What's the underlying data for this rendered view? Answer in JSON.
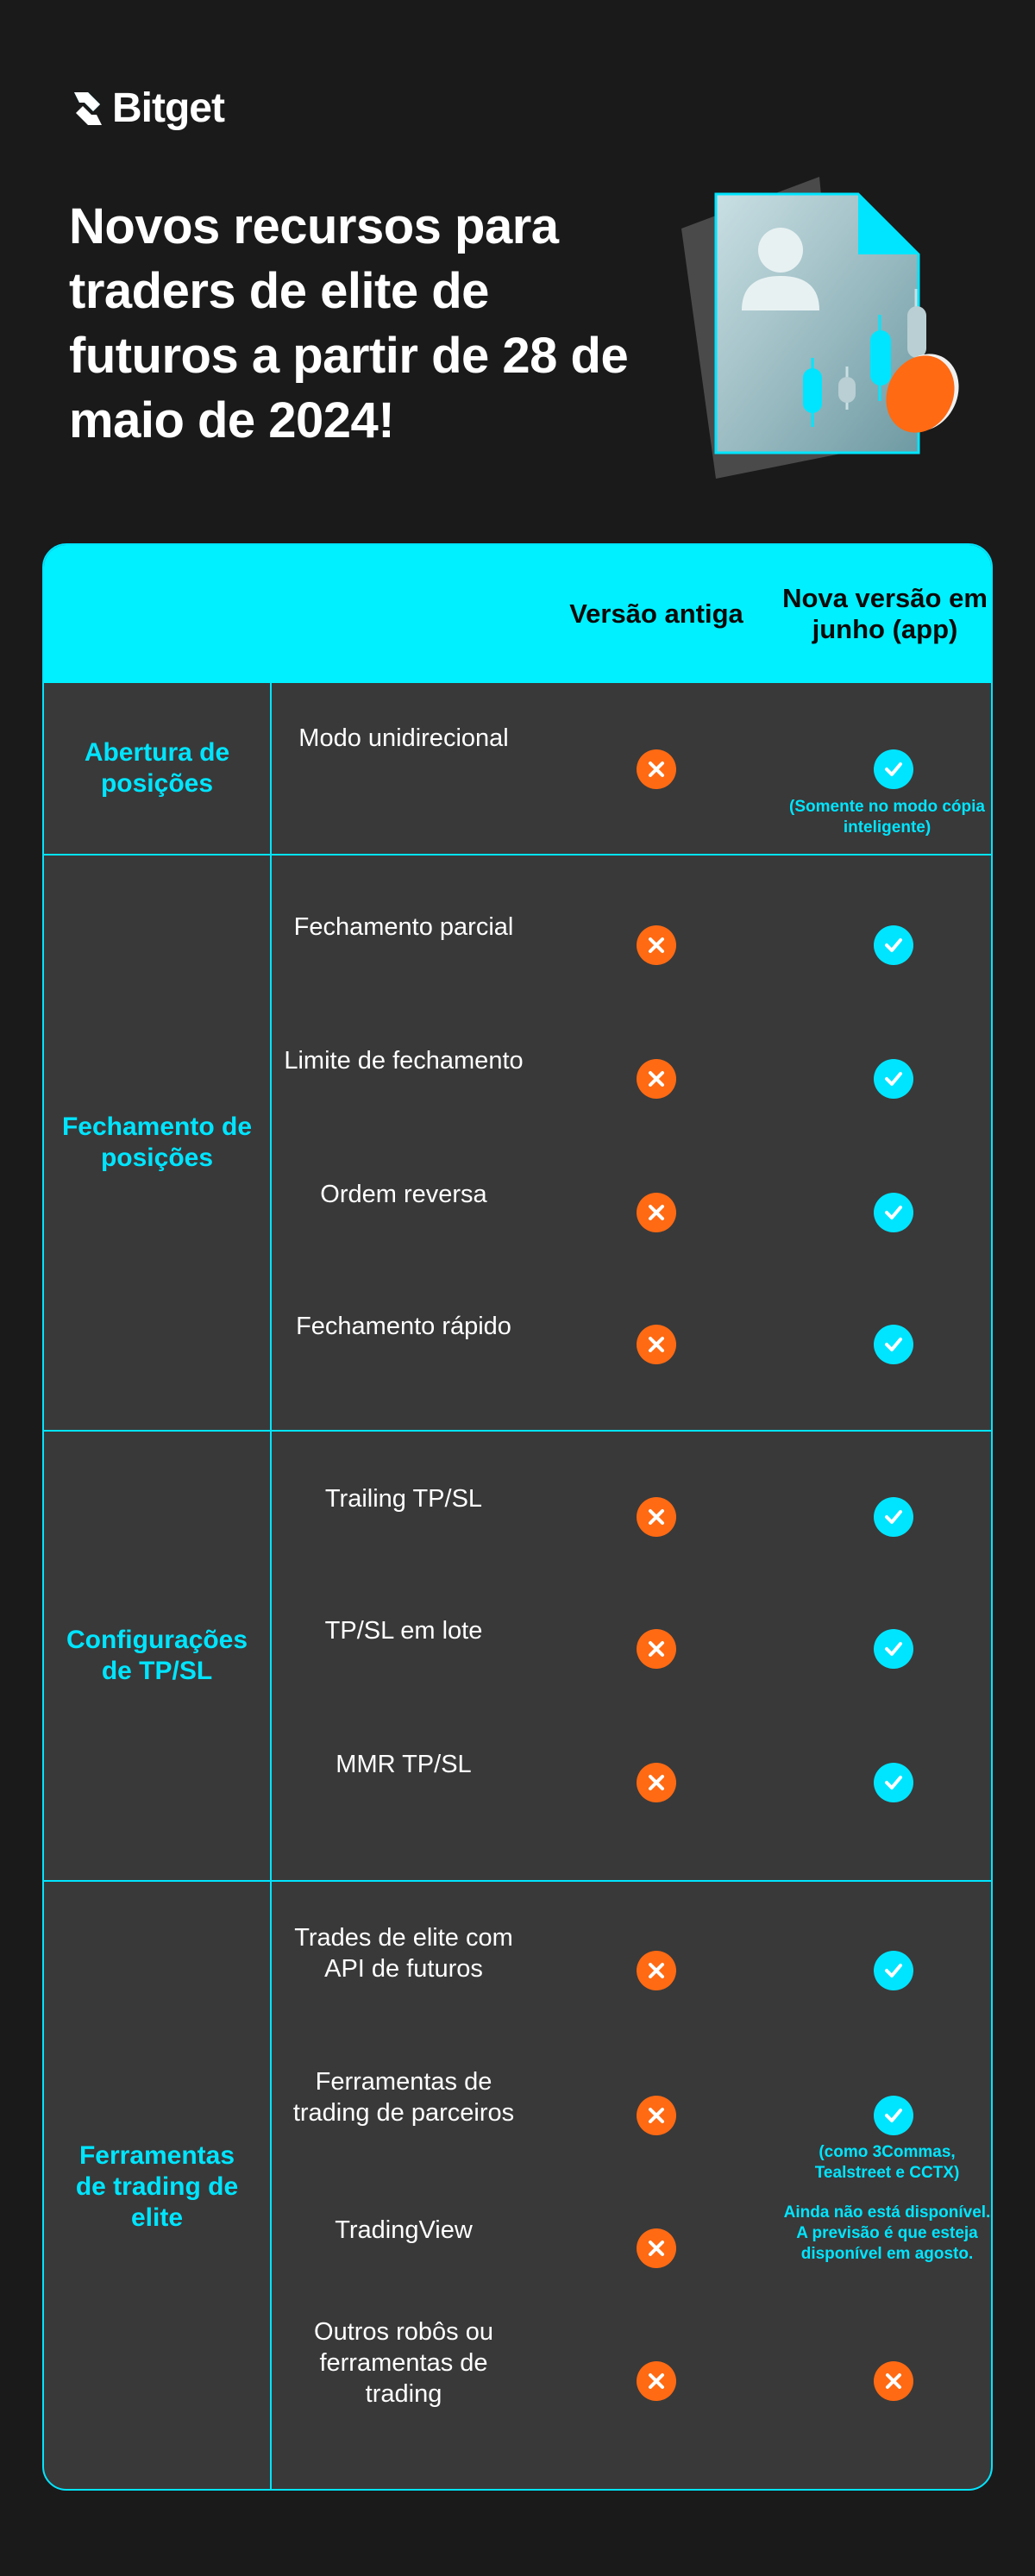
{
  "brand": {
    "name": "Bitget",
    "accent": "#00f0ff",
    "cross_color": "#ff6a13"
  },
  "headline": "Novos recursos para traders de elite de futuros a partir de 28 de maio de 2024!",
  "table": {
    "col_old": "Versão antiga",
    "col_new": "Nova versão em junho (app)",
    "groups": [
      {
        "label": "Abertura de posições"
      },
      {
        "label": "Fechamento de posições"
      },
      {
        "label": "Configurações de TP/SL"
      },
      {
        "label": "Ferramentas de trading de elite"
      }
    ],
    "rows": [
      {
        "feature": "Modo unidirecional",
        "old": "cross-icon",
        "new": "check-icon",
        "note": "(Somente no modo cópia inteligente)"
      },
      {
        "feature": "Fechamento parcial",
        "old": "cross-icon",
        "new": "check-icon"
      },
      {
        "feature": "Limite de fechamento",
        "old": "cross-icon",
        "new": "check-icon"
      },
      {
        "feature": "Ordem reversa",
        "old": "cross-icon",
        "new": "check-icon"
      },
      {
        "feature": "Fechamento rápido",
        "old": "cross-icon",
        "new": "check-icon"
      },
      {
        "feature": "Trailing TP/SL",
        "old": "cross-icon",
        "new": "check-icon"
      },
      {
        "feature": "TP/SL em lote",
        "old": "cross-icon",
        "new": "check-icon"
      },
      {
        "feature": "MMR TP/SL",
        "old": "cross-icon",
        "new": "check-icon"
      },
      {
        "feature": "Trades de elite com API de futuros",
        "old": "cross-icon",
        "new": "check-icon"
      },
      {
        "feature": "Ferramentas de trading de parceiros",
        "old": "cross-icon",
        "new": "check-icon",
        "note": "(como 3Commas, Tealstreet e CCTX)"
      },
      {
        "feature": "TradingView",
        "old": "cross-icon",
        "new": "none",
        "note": "Ainda não está disponível. A previsão é que esteja disponível em agosto."
      },
      {
        "feature": "Outros robôs ou ferramentas de trading",
        "old": "cross-icon",
        "new": "cross-icon"
      }
    ]
  }
}
